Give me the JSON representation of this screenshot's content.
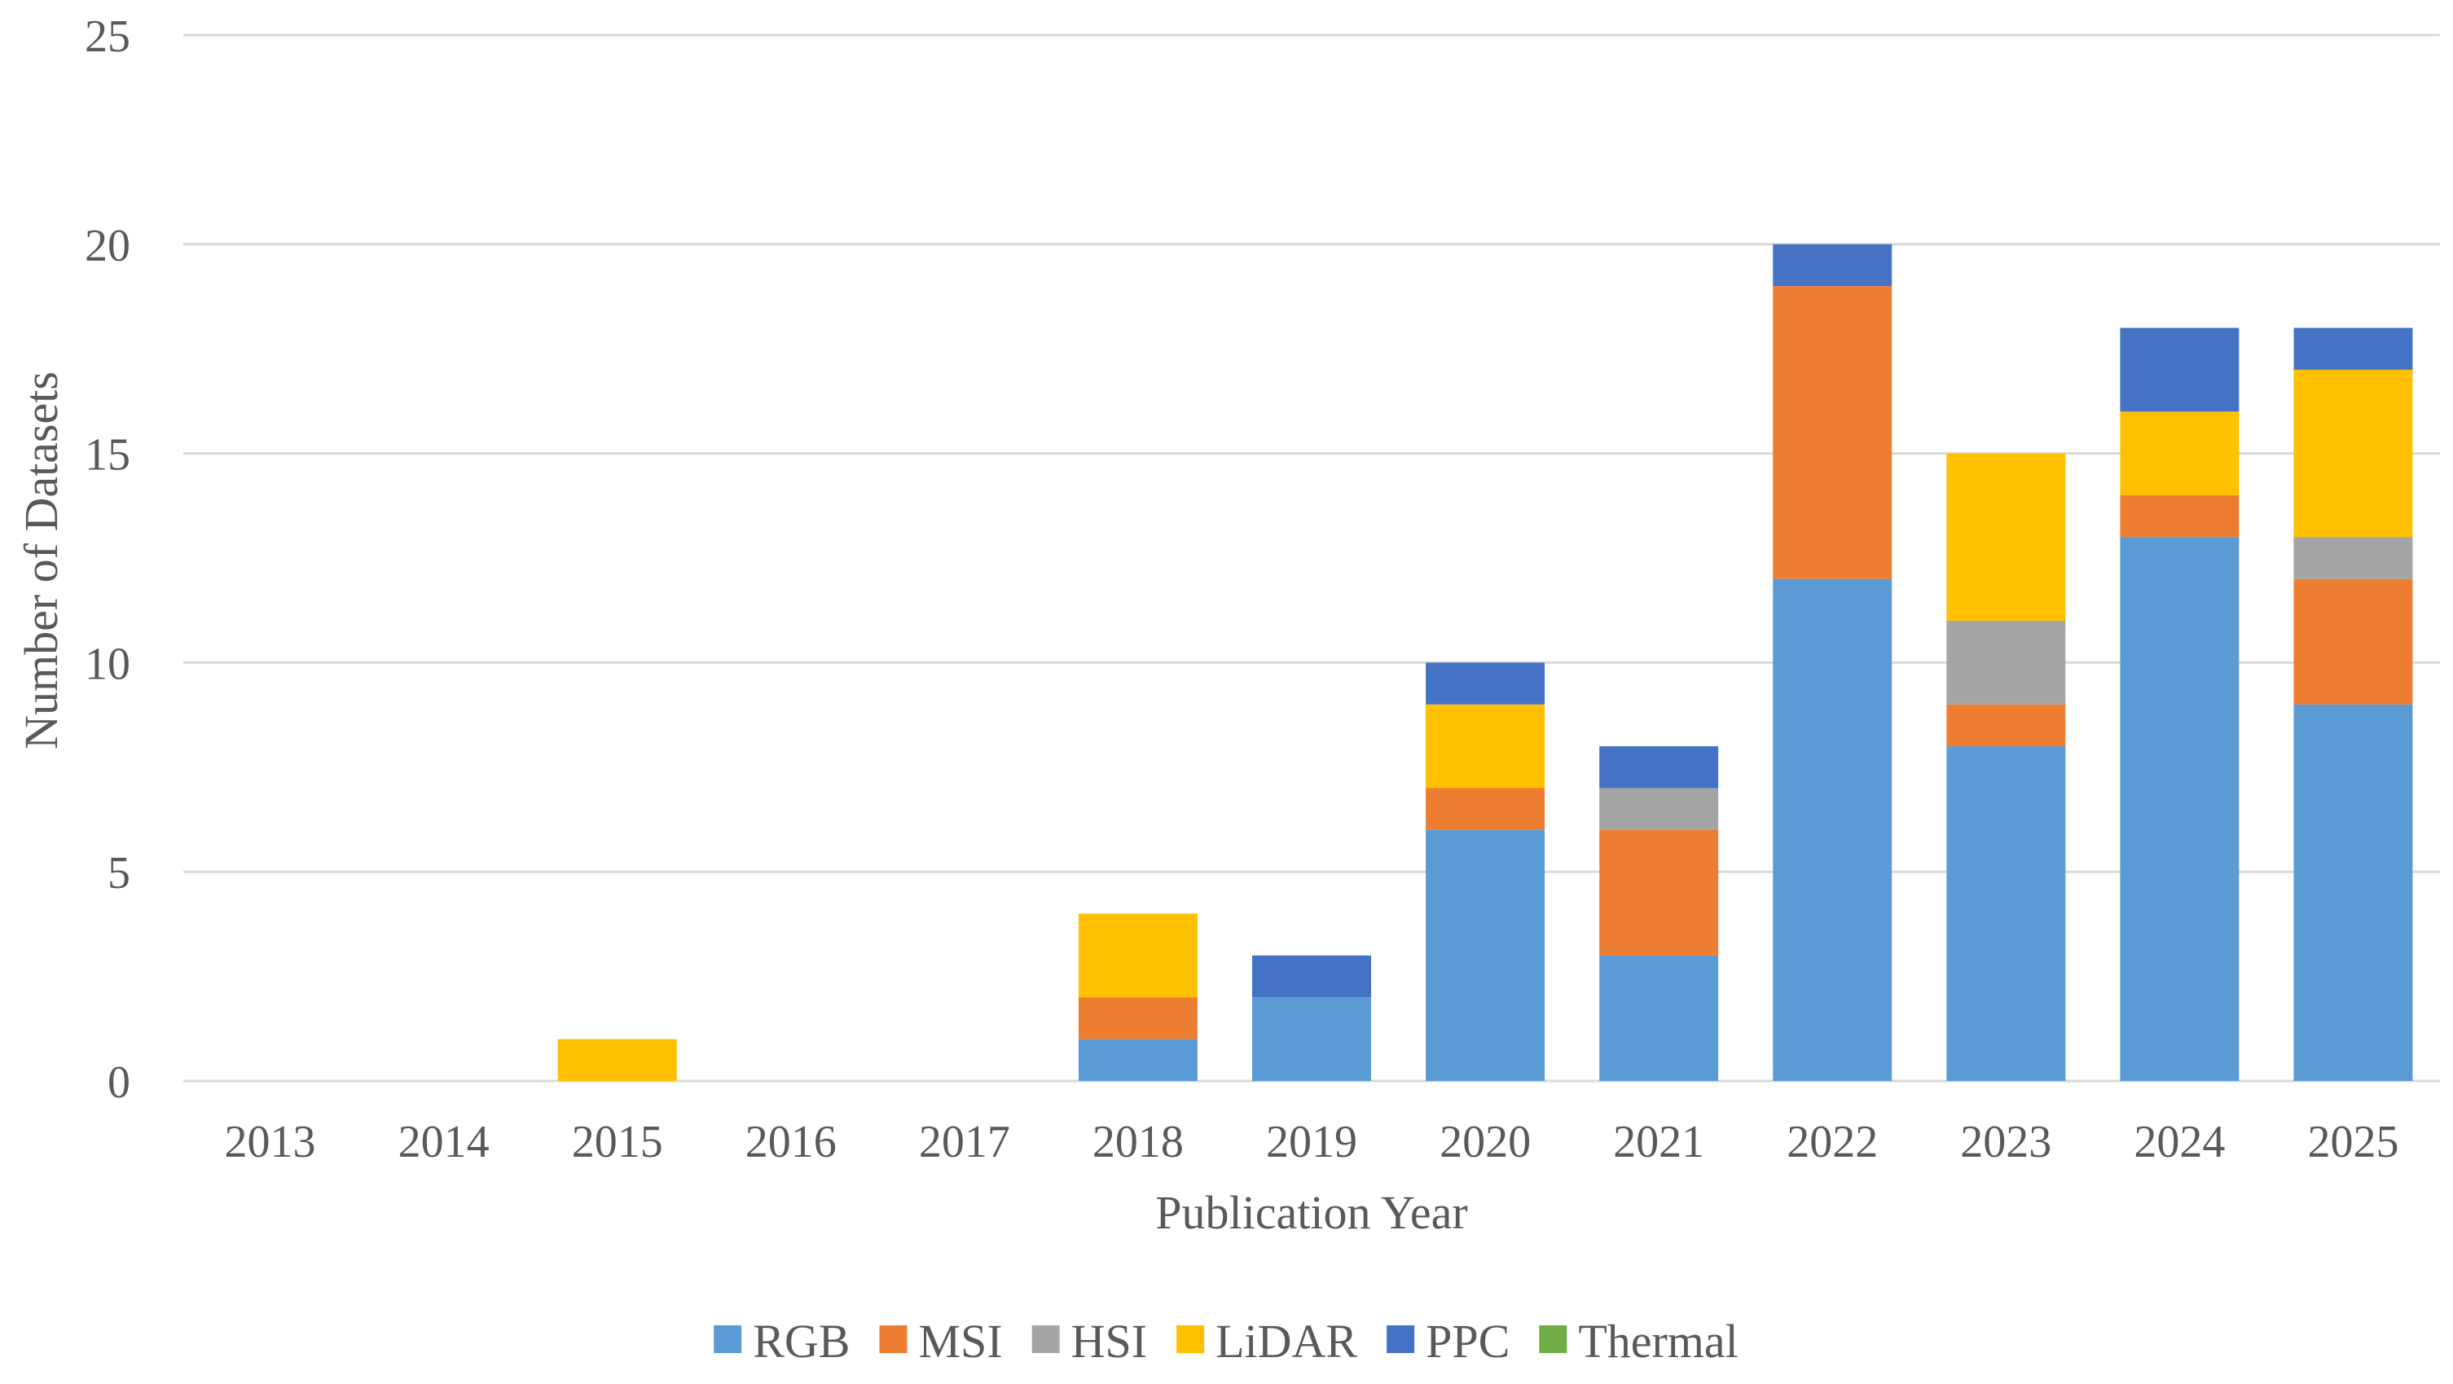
{
  "chart_data": {
    "type": "bar",
    "stacked": true,
    "categories": [
      "2013",
      "2014",
      "2015",
      "2016",
      "2017",
      "2018",
      "2019",
      "2020",
      "2021",
      "2022",
      "2023",
      "2024",
      "2025"
    ],
    "series": [
      {
        "name": "RGB",
        "color": "#5b9bd5",
        "values": [
          0,
          0,
          0,
          0,
          0,
          1,
          2,
          6,
          3,
          12,
          8,
          13,
          9
        ]
      },
      {
        "name": "MSI",
        "color": "#ed7d31",
        "values": [
          0,
          0,
          0,
          0,
          0,
          1,
          0,
          1,
          3,
          7,
          1,
          1,
          3
        ]
      },
      {
        "name": "HSI",
        "color": "#a5a5a5",
        "values": [
          0,
          0,
          0,
          0,
          0,
          0,
          0,
          0,
          1,
          0,
          2,
          0,
          1
        ]
      },
      {
        "name": "LiDAR",
        "color": "#ffc000",
        "values": [
          0,
          0,
          1,
          0,
          0,
          2,
          0,
          2,
          0,
          0,
          4,
          2,
          4
        ]
      },
      {
        "name": "PPC",
        "color": "#4472c4",
        "values": [
          0,
          0,
          0,
          0,
          0,
          0,
          1,
          1,
          1,
          1,
          0,
          2,
          1
        ]
      },
      {
        "name": "Thermal",
        "color": "#70ad47",
        "values": [
          0,
          0,
          0,
          0,
          0,
          0,
          0,
          0,
          0,
          0,
          0,
          0,
          0
        ]
      }
    ],
    "title": "",
    "xlabel": "Publication Year",
    "ylabel": "Number of Datasets",
    "ylim": [
      0,
      25
    ],
    "yticks": [
      0,
      5,
      10,
      15,
      20,
      25
    ],
    "grid": true,
    "legend_position": "bottom"
  }
}
